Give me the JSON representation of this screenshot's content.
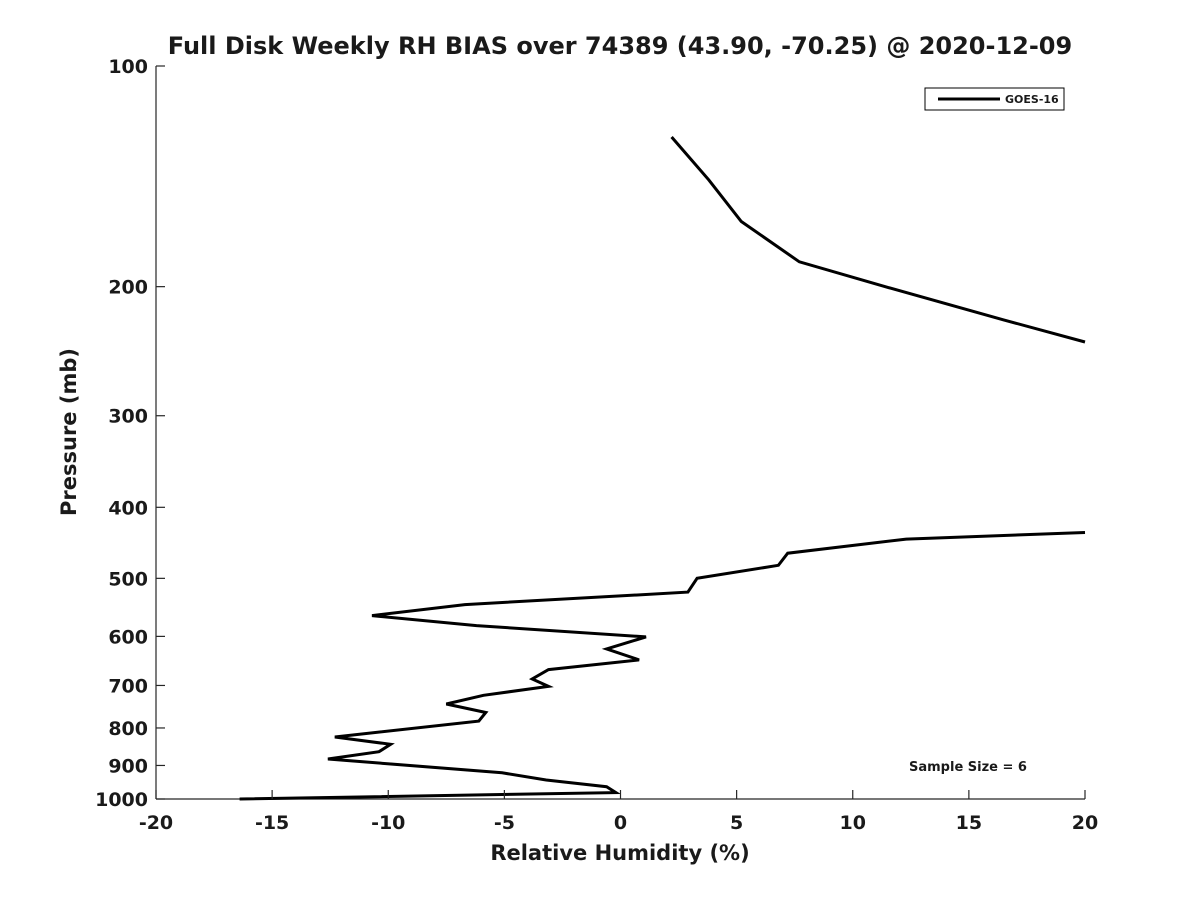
{
  "chart_data": {
    "type": "line",
    "title": "Full Disk Weekly RH BIAS over 74389 (43.90, -70.25) @ 2020-12-09",
    "xlabel": "Relative Humidity (%)",
    "ylabel": "Pressure (mb)",
    "xlim": [
      -20,
      20
    ],
    "ylim": [
      100,
      1000
    ],
    "y_scale": "log",
    "y_reversed": true,
    "grid": false,
    "x_ticks": [
      -20,
      -15,
      -10,
      -5,
      0,
      5,
      10,
      15,
      20
    ],
    "x_tick_labels": [
      "-20",
      "-15",
      "-10",
      "-5",
      "0",
      "5",
      "10",
      "15",
      "20"
    ],
    "y_ticks": [
      100,
      200,
      300,
      400,
      500,
      600,
      700,
      800,
      900,
      1000
    ],
    "y_tick_labels": [
      "100",
      "200",
      "300",
      "400",
      "500",
      "600",
      "700",
      "800",
      "900",
      "1000"
    ],
    "legend_position": "top-right",
    "annotation": "Sample Size = 6",
    "series": [
      {
        "name": "GOES-16",
        "color": "#000000",
        "segments": [
          [
            {
              "x": 2.2,
              "p": 125
            },
            {
              "x": 3.8,
              "p": 143
            },
            {
              "x": 5.2,
              "p": 163
            },
            {
              "x": 7.7,
              "p": 185
            },
            {
              "x": 11.4,
              "p": 200
            },
            {
              "x": 16.5,
              "p": 222
            },
            {
              "x": 20.0,
              "p": 238
            }
          ],
          [
            {
              "x": 20.0,
              "p": 433
            },
            {
              "x": 12.3,
              "p": 442
            },
            {
              "x": 7.2,
              "p": 462
            },
            {
              "x": 6.8,
              "p": 480
            },
            {
              "x": 3.3,
              "p": 500
            },
            {
              "x": 2.9,
              "p": 522
            },
            {
              "x": -6.7,
              "p": 543
            },
            {
              "x": -10.7,
              "p": 562
            },
            {
              "x": -6.2,
              "p": 580
            },
            {
              "x": 1.1,
              "p": 601
            },
            {
              "x": -0.6,
              "p": 624
            },
            {
              "x": 0.8,
              "p": 646
            },
            {
              "x": -3.1,
              "p": 666
            },
            {
              "x": -3.8,
              "p": 686
            },
            {
              "x": -3.1,
              "p": 702
            },
            {
              "x": -5.9,
              "p": 722
            },
            {
              "x": -7.5,
              "p": 742
            },
            {
              "x": -5.8,
              "p": 762
            },
            {
              "x": -6.1,
              "p": 783
            },
            {
              "x": -12.3,
              "p": 823
            },
            {
              "x": -9.9,
              "p": 842
            },
            {
              "x": -10.4,
              "p": 862
            },
            {
              "x": -12.6,
              "p": 882
            },
            {
              "x": -5.1,
              "p": 921
            },
            {
              "x": -3.2,
              "p": 942
            },
            {
              "x": -0.6,
              "p": 962
            },
            {
              "x": -0.2,
              "p": 980
            },
            {
              "x": -16.4,
              "p": 1000
            }
          ]
        ]
      }
    ]
  }
}
